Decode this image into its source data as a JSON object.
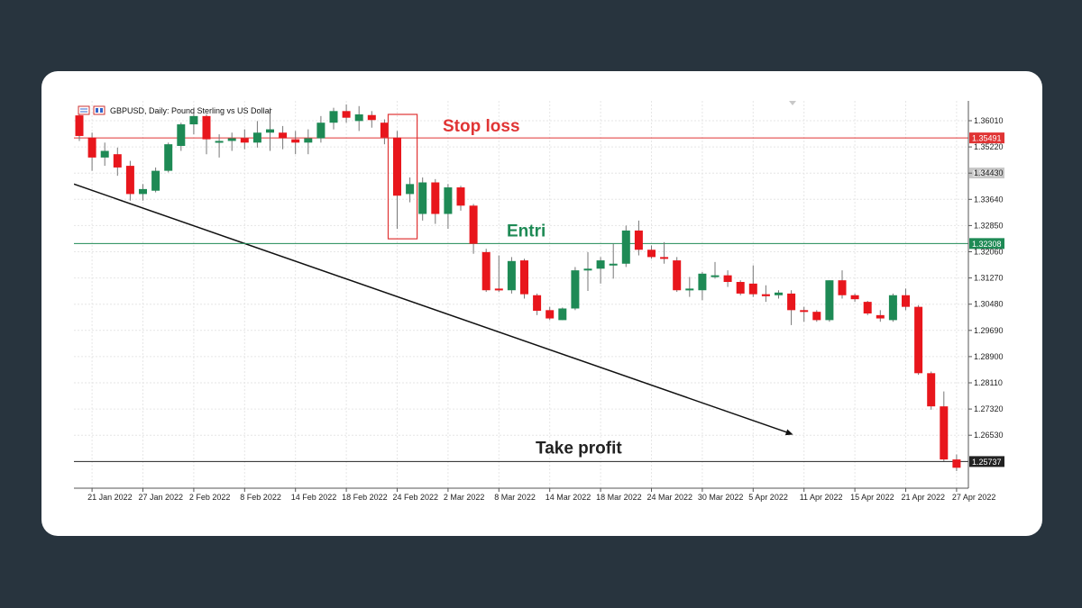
{
  "colors": {
    "page_bg": "#28343e",
    "card_bg": "#ffffff",
    "bull": "#1e8a55",
    "bear": "#e8161c",
    "stop_loss": "#e03434",
    "entry": "#1e8a55",
    "take_profit": "#222222"
  },
  "chart_header": {
    "symbol_label": "GBPUSD, Daily:  Pound Sterling vs US Dollar",
    "icon": "chart-window-icon"
  },
  "chart_data": {
    "type": "candlestick",
    "x_label_dates": [
      "21 Jan 2022",
      "27 Jan 2022",
      "2 Feb 2022",
      "8 Feb 2022",
      "14 Feb 2022",
      "18 Feb 2022",
      "24 Feb 2022",
      "2 Mar 2022",
      "8 Mar 2022",
      "14 Mar 2022",
      "18 Mar 2022",
      "24 Mar 2022",
      "30 Mar 2022",
      "5 Apr 2022",
      "11 Apr 2022",
      "15 Apr 2022",
      "21 Apr 2022",
      "27 Apr 2022"
    ],
    "y_ticks": [
      1.3601,
      1.3522,
      1.3443,
      1.3364,
      1.3285,
      1.3206,
      1.3127,
      1.3048,
      1.2969,
      1.289,
      1.2811,
      1.2732,
      1.2653
    ],
    "y_tick_labels": [
      "1.36010",
      "1.35220",
      "1.34430",
      "1.33640",
      "1.32850",
      "1.32060",
      "1.31270",
      "1.30480",
      "1.29690",
      "1.28900",
      "1.28110",
      "1.27320",
      "1.26530"
    ],
    "ylim": [
      1.253,
      1.366
    ],
    "grid": true,
    "candles": [
      {
        "d": "20 Jan 2022",
        "o": 1.3617,
        "h": 1.3636,
        "l": 1.354,
        "c": 1.3555
      },
      {
        "d": "21 Jan 2022",
        "o": 1.355,
        "h": 1.3565,
        "l": 1.345,
        "c": 1.349
      },
      {
        "d": "24 Jan 2022",
        "o": 1.349,
        "h": 1.3535,
        "l": 1.3465,
        "c": 1.351
      },
      {
        "d": "25 Jan 2022",
        "o": 1.35,
        "h": 1.352,
        "l": 1.3435,
        "c": 1.346
      },
      {
        "d": "26 Jan 2022",
        "o": 1.3465,
        "h": 1.348,
        "l": 1.336,
        "c": 1.338
      },
      {
        "d": "27 Jan 2022",
        "o": 1.338,
        "h": 1.341,
        "l": 1.336,
        "c": 1.3395
      },
      {
        "d": "28 Jan 2022",
        "o": 1.339,
        "h": 1.346,
        "l": 1.3385,
        "c": 1.345
      },
      {
        "d": "31 Jan 2022",
        "o": 1.345,
        "h": 1.3535,
        "l": 1.3445,
        "c": 1.353
      },
      {
        "d": "1 Feb 2022",
        "o": 1.3525,
        "h": 1.3595,
        "l": 1.351,
        "c": 1.359
      },
      {
        "d": "2 Feb 2022",
        "o": 1.359,
        "h": 1.3625,
        "l": 1.356,
        "c": 1.3615
      },
      {
        "d": "3 Feb 2022",
        "o": 1.3615,
        "h": 1.362,
        "l": 1.35,
        "c": 1.3545
      },
      {
        "d": "4 Feb 2022",
        "o": 1.3535,
        "h": 1.356,
        "l": 1.349,
        "c": 1.354
      },
      {
        "d": "7 Feb 2022",
        "o": 1.354,
        "h": 1.3565,
        "l": 1.351,
        "c": 1.3548
      },
      {
        "d": "8 Feb 2022",
        "o": 1.3548,
        "h": 1.3575,
        "l": 1.3515,
        "c": 1.3535
      },
      {
        "d": "9 Feb 2022",
        "o": 1.3535,
        "h": 1.36,
        "l": 1.352,
        "c": 1.3565
      },
      {
        "d": "10 Feb 2022",
        "o": 1.3565,
        "h": 1.364,
        "l": 1.351,
        "c": 1.3575
      },
      {
        "d": "11 Feb 2022",
        "o": 1.3565,
        "h": 1.3585,
        "l": 1.3515,
        "c": 1.3548
      },
      {
        "d": "14 Feb 2022",
        "o": 1.3545,
        "h": 1.357,
        "l": 1.35,
        "c": 1.3535
      },
      {
        "d": "15 Feb 2022",
        "o": 1.3535,
        "h": 1.3575,
        "l": 1.35,
        "c": 1.3548
      },
      {
        "d": "16 Feb 2022",
        "o": 1.3548,
        "h": 1.3615,
        "l": 1.3535,
        "c": 1.3595
      },
      {
        "d": "17 Feb 2022",
        "o": 1.3595,
        "h": 1.364,
        "l": 1.3575,
        "c": 1.363
      },
      {
        "d": "18 Feb 2022",
        "o": 1.363,
        "h": 1.365,
        "l": 1.3595,
        "c": 1.361
      },
      {
        "d": "21 Feb 2022",
        "o": 1.36,
        "h": 1.3645,
        "l": 1.357,
        "c": 1.362
      },
      {
        "d": "22 Feb 2022",
        "o": 1.3618,
        "h": 1.363,
        "l": 1.358,
        "c": 1.3603
      },
      {
        "d": "23 Feb 2022",
        "o": 1.3595,
        "h": 1.3605,
        "l": 1.353,
        "c": 1.355
      },
      {
        "d": "24 Feb 2022",
        "o": 1.355,
        "h": 1.357,
        "l": 1.3275,
        "c": 1.3375
      },
      {
        "d": "25 Feb 2022",
        "o": 1.338,
        "h": 1.343,
        "l": 1.3355,
        "c": 1.341
      },
      {
        "d": "28 Feb 2022",
        "o": 1.332,
        "h": 1.343,
        "l": 1.33,
        "c": 1.3415
      },
      {
        "d": "1 Mar 2022",
        "o": 1.3415,
        "h": 1.3425,
        "l": 1.329,
        "c": 1.332
      },
      {
        "d": "2 Mar 2022",
        "o": 1.332,
        "h": 1.341,
        "l": 1.3275,
        "c": 1.34
      },
      {
        "d": "3 Mar 2022",
        "o": 1.34,
        "h": 1.3405,
        "l": 1.333,
        "c": 1.3345
      },
      {
        "d": "4 Mar 2022",
        "o": 1.3345,
        "h": 1.335,
        "l": 1.32,
        "c": 1.323
      },
      {
        "d": "7 Mar 2022",
        "o": 1.3205,
        "h": 1.3215,
        "l": 1.3085,
        "c": 1.309
      },
      {
        "d": "8 Mar 2022",
        "o": 1.3095,
        "h": 1.3195,
        "l": 1.3085,
        "c": 1.309
      },
      {
        "d": "9 Mar 2022",
        "o": 1.309,
        "h": 1.319,
        "l": 1.308,
        "c": 1.3178
      },
      {
        "d": "10 Mar 2022",
        "o": 1.318,
        "h": 1.3185,
        "l": 1.3065,
        "c": 1.3078
      },
      {
        "d": "11 Mar 2022",
        "o": 1.3075,
        "h": 1.308,
        "l": 1.3015,
        "c": 1.3028
      },
      {
        "d": "14 Mar 2022",
        "o": 1.303,
        "h": 1.304,
        "l": 1.3,
        "c": 1.3005
      },
      {
        "d": "15 Mar 2022",
        "o": 1.3,
        "h": 1.3038,
        "l": 1.3,
        "c": 1.3035
      },
      {
        "d": "16 Mar 2022",
        "o": 1.3035,
        "h": 1.316,
        "l": 1.303,
        "c": 1.315
      },
      {
        "d": "17 Mar 2022",
        "o": 1.315,
        "h": 1.3205,
        "l": 1.3088,
        "c": 1.3155
      },
      {
        "d": "18 Mar 2022",
        "o": 1.3155,
        "h": 1.319,
        "l": 1.311,
        "c": 1.318
      },
      {
        "d": "21 Mar 2022",
        "o": 1.317,
        "h": 1.323,
        "l": 1.3125,
        "c": 1.317
      },
      {
        "d": "22 Mar 2022",
        "o": 1.317,
        "h": 1.3285,
        "l": 1.316,
        "c": 1.327
      },
      {
        "d": "23 Mar 2022",
        "o": 1.327,
        "h": 1.33,
        "l": 1.3195,
        "c": 1.3212
      },
      {
        "d": "24 Mar 2022",
        "o": 1.3212,
        "h": 1.3225,
        "l": 1.3185,
        "c": 1.319
      },
      {
        "d": "25 Mar 2022",
        "o": 1.319,
        "h": 1.3235,
        "l": 1.317,
        "c": 1.3185
      },
      {
        "d": "28 Mar 2022",
        "o": 1.318,
        "h": 1.319,
        "l": 1.3085,
        "c": 1.309
      },
      {
        "d": "29 Mar 2022",
        "o": 1.309,
        "h": 1.313,
        "l": 1.307,
        "c": 1.3095
      },
      {
        "d": "30 Mar 2022",
        "o": 1.309,
        "h": 1.3145,
        "l": 1.306,
        "c": 1.314
      },
      {
        "d": "31 Mar 2022",
        "o": 1.313,
        "h": 1.3175,
        "l": 1.3125,
        "c": 1.3135
      },
      {
        "d": "1 Apr 2022",
        "o": 1.3135,
        "h": 1.315,
        "l": 1.31,
        "c": 1.3115
      },
      {
        "d": "4 Apr 2022",
        "o": 1.3115,
        "h": 1.312,
        "l": 1.3075,
        "c": 1.308
      },
      {
        "d": "5 Apr 2022",
        "o": 1.311,
        "h": 1.3165,
        "l": 1.307,
        "c": 1.3078
      },
      {
        "d": "6 Apr 2022",
        "o": 1.3078,
        "h": 1.3105,
        "l": 1.3055,
        "c": 1.3072
      },
      {
        "d": "7 Apr 2022",
        "o": 1.3075,
        "h": 1.309,
        "l": 1.3065,
        "c": 1.3083
      },
      {
        "d": "8 Apr 2022",
        "o": 1.308,
        "h": 1.309,
        "l": 1.2985,
        "c": 1.303
      },
      {
        "d": "11 Apr 2022",
        "o": 1.303,
        "h": 1.304,
        "l": 1.2995,
        "c": 1.3025
      },
      {
        "d": "12 Apr 2022",
        "o": 1.3025,
        "h": 1.303,
        "l": 1.2995,
        "c": 1.3
      },
      {
        "d": "13 Apr 2022",
        "o": 1.3,
        "h": 1.312,
        "l": 1.2995,
        "c": 1.312
      },
      {
        "d": "14 Apr 2022",
        "o": 1.312,
        "h": 1.315,
        "l": 1.3065,
        "c": 1.3075
      },
      {
        "d": "15 Apr 2022",
        "o": 1.3075,
        "h": 1.308,
        "l": 1.3055,
        "c": 1.3063
      },
      {
        "d": "18 Apr 2022",
        "o": 1.3055,
        "h": 1.3058,
        "l": 1.3015,
        "c": 1.302
      },
      {
        "d": "19 Apr 2022",
        "o": 1.3015,
        "h": 1.303,
        "l": 1.2995,
        "c": 1.3005
      },
      {
        "d": "20 Apr 2022",
        "o": 1.3,
        "h": 1.308,
        "l": 1.2995,
        "c": 1.3075
      },
      {
        "d": "21 Apr 2022",
        "o": 1.3075,
        "h": 1.3095,
        "l": 1.303,
        "c": 1.304
      },
      {
        "d": "22 Apr 2022",
        "o": 1.304,
        "h": 1.3045,
        "l": 1.2835,
        "c": 1.284
      },
      {
        "d": "25 Apr 2022",
        "o": 1.284,
        "h": 1.2845,
        "l": 1.273,
        "c": 1.274
      },
      {
        "d": "26 Apr 2022",
        "o": 1.274,
        "h": 1.2785,
        "l": 1.2575,
        "c": 1.258
      },
      {
        "d": "27 Apr 2022",
        "o": 1.258,
        "h": 1.2595,
        "l": 1.2545,
        "c": 1.2555
      }
    ],
    "levels": [
      {
        "name": "stop-loss",
        "value": 1.35491,
        "label": "1.35491",
        "annotation": "Stop loss",
        "color": "#e03434"
      },
      {
        "name": "entry",
        "value": 1.32308,
        "label": "1.32308",
        "annotation": "Entri",
        "color": "#1e8a55"
      },
      {
        "name": "take-profit",
        "value": 1.25737,
        "label": "1.25737",
        "annotation": "Take profit",
        "color": "#222222"
      }
    ],
    "grey_price_label": {
      "value": 1.34434,
      "label": "1.34434"
    },
    "highlight_box": {
      "from": "24 Feb 2022",
      "to": "25 Feb 2022",
      "y_top": 1.362,
      "y_bottom": 1.3245,
      "color": "#e03434"
    },
    "trend_arrow": {
      "from": {
        "d": "20 Jan 2022",
        "y": 1.341
      },
      "to": {
        "d": "8 Apr 2022",
        "y": 1.2655
      },
      "color": "#111111"
    }
  }
}
